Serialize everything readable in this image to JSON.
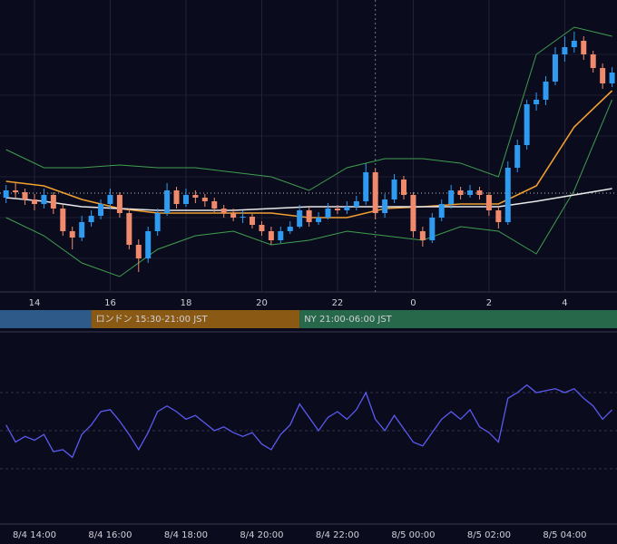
{
  "chart_data": [
    {
      "type": "candlestick",
      "x": [
        13.25,
        13.5,
        13.75,
        14,
        14.25,
        14.5,
        14.75,
        15,
        15.25,
        15.5,
        15.75,
        16,
        16.25,
        16.5,
        16.75,
        17,
        17.25,
        17.5,
        17.75,
        18,
        18.25,
        18.5,
        18.75,
        19,
        19.25,
        19.5,
        19.75,
        20,
        20.25,
        20.5,
        20.75,
        21,
        21.25,
        21.5,
        21.75,
        22,
        22.25,
        22.5,
        22.75,
        23,
        23.25,
        23.5,
        23.75,
        24,
        24.25,
        24.5,
        24.75,
        25,
        25.25,
        25.5,
        25.75,
        26,
        26.25,
        26.5,
        26.75,
        27,
        27.25,
        27.5,
        27.75,
        28,
        28.25,
        28.5,
        28.75,
        29,
        29.25
      ],
      "ohlc": [
        [
          112,
          126,
          106,
          120
        ],
        [
          120,
          128,
          112,
          118
        ],
        [
          118,
          122,
          104,
          110
        ],
        [
          110,
          116,
          98,
          105
        ],
        [
          105,
          122,
          100,
          115
        ],
        [
          115,
          118,
          94,
          100
        ],
        [
          100,
          104,
          70,
          75
        ],
        [
          75,
          80,
          55,
          68
        ],
        [
          68,
          92,
          64,
          85
        ],
        [
          85,
          98,
          80,
          92
        ],
        [
          92,
          110,
          88,
          105
        ],
        [
          105,
          122,
          100,
          115
        ],
        [
          115,
          118,
          90,
          95
        ],
        [
          95,
          100,
          55,
          60
        ],
        [
          60,
          66,
          30,
          45
        ],
        [
          45,
          80,
          40,
          75
        ],
        [
          75,
          100,
          70,
          95
        ],
        [
          95,
          128,
          92,
          120
        ],
        [
          120,
          124,
          100,
          105
        ],
        [
          105,
          122,
          102,
          115
        ],
        [
          115,
          120,
          106,
          112
        ],
        [
          112,
          116,
          102,
          108
        ],
        [
          108,
          112,
          96,
          100
        ],
        [
          100,
          104,
          90,
          95
        ],
        [
          95,
          100,
          86,
          90
        ],
        [
          90,
          98,
          84,
          91
        ],
        [
          91,
          94,
          78,
          82
        ],
        [
          82,
          86,
          70,
          75
        ],
        [
          75,
          80,
          60,
          65
        ],
        [
          65,
          80,
          62,
          75
        ],
        [
          75,
          86,
          72,
          80
        ],
        [
          80,
          104,
          78,
          98
        ],
        [
          98,
          102,
          80,
          85
        ],
        [
          85,
          96,
          82,
          90
        ],
        [
          90,
          106,
          88,
          100
        ],
        [
          100,
          104,
          94,
          98
        ],
        [
          98,
          108,
          94,
          102
        ],
        [
          102,
          114,
          98,
          108
        ],
        [
          108,
          150,
          104,
          140
        ],
        [
          140,
          144,
          88,
          95
        ],
        [
          95,
          116,
          90,
          110
        ],
        [
          110,
          138,
          106,
          132
        ],
        [
          132,
          136,
          110,
          115
        ],
        [
          115,
          118,
          68,
          75
        ],
        [
          75,
          80,
          58,
          65
        ],
        [
          65,
          95,
          62,
          90
        ],
        [
          90,
          110,
          86,
          105
        ],
        [
          105,
          126,
          100,
          120
        ],
        [
          120,
          124,
          110,
          115
        ],
        [
          115,
          126,
          112,
          120
        ],
        [
          120,
          124,
          110,
          115
        ],
        [
          115,
          118,
          92,
          98
        ],
        [
          98,
          102,
          78,
          85
        ],
        [
          85,
          152,
          82,
          145
        ],
        [
          145,
          176,
          140,
          170
        ],
        [
          170,
          220,
          165,
          215
        ],
        [
          215,
          228,
          208,
          220
        ],
        [
          220,
          246,
          214,
          240
        ],
        [
          240,
          278,
          236,
          270
        ],
        [
          270,
          290,
          262,
          278
        ],
        [
          278,
          295,
          272,
          285
        ],
        [
          285,
          290,
          264,
          270
        ],
        [
          270,
          274,
          250,
          255
        ],
        [
          255,
          260,
          232,
          238
        ],
        [
          238,
          256,
          234,
          250
        ]
      ],
      "up_color": "#2f9bf0",
      "down_color": "#f08a6c",
      "xlim": [
        13.09,
        29.38
      ],
      "ylim": [
        8,
        330
      ],
      "xticks": [
        14,
        16,
        18,
        20,
        22,
        {
          "value": 24,
          "label": "0"
        },
        {
          "value": 26,
          "label": "2"
        },
        {
          "value": 28,
          "label": "4"
        }
      ],
      "ygrid": [
        45,
        90,
        135,
        180,
        225,
        270
      ],
      "price_line": 117,
      "divider_x": 23,
      "overlay_x": [
        13.25,
        14.25,
        15.25,
        16.25,
        17.25,
        18.25,
        19.25,
        20.25,
        21.25,
        22.25,
        23.25,
        24.25,
        25.25,
        26.25,
        27.25,
        28.25,
        29.25
      ],
      "overlays": [
        {
          "color": "#3f9f4f",
          "values": [
            165,
            145,
            145,
            148,
            145,
            145,
            140,
            135,
            120,
            145,
            155,
            155,
            150,
            135,
            270,
            300,
            290
          ]
        },
        {
          "color": "#3f9f4f",
          "values": [
            90,
            70,
            40,
            25,
            55,
            70,
            75,
            60,
            65,
            75,
            70,
            65,
            80,
            75,
            50,
            120,
            220
          ]
        },
        {
          "color": "#f0a030",
          "values": [
            130,
            125,
            110,
            100,
            95,
            95,
            95,
            95,
            90,
            90,
            100,
            102,
            105,
            105,
            125,
            190,
            230
          ]
        },
        {
          "color": "#e8e8e8",
          "values": [
            112,
            108,
            102,
            100,
            98,
            98,
            98,
            100,
            102,
            102,
            102,
            102,
            102,
            102,
            108,
            115,
            122
          ]
        }
      ],
      "sessions": [
        {
          "label": null,
          "start": 13,
          "end": 15.5,
          "color": "#2e5a8a"
        },
        {
          "label": "ロンドン 15:30-21:00 JST",
          "start": 15.5,
          "end": 21,
          "color": "#8a5a14"
        },
        {
          "label": "NY 21:00-06:00 JST",
          "start": 21,
          "end": 30,
          "color": "#27684a"
        }
      ]
    },
    {
      "type": "line",
      "x": [
        13.25,
        13.5,
        13.75,
        14,
        14.25,
        14.5,
        14.75,
        15,
        15.25,
        15.5,
        15.75,
        16,
        16.25,
        16.5,
        16.75,
        17,
        17.25,
        17.5,
        17.75,
        18,
        18.25,
        18.5,
        18.75,
        19,
        19.25,
        19.5,
        19.75,
        20,
        20.25,
        20.5,
        20.75,
        21,
        21.25,
        21.5,
        21.75,
        22,
        22.25,
        22.5,
        22.75,
        23,
        23.25,
        23.5,
        23.75,
        24,
        24.25,
        24.5,
        24.75,
        25,
        25.25,
        25.5,
        25.75,
        26,
        26.25,
        26.5,
        26.75,
        27,
        27.25,
        27.5,
        27.75,
        28,
        28.25,
        28.5,
        28.75,
        29,
        29.25
      ],
      "values": [
        53,
        44,
        47,
        45,
        48,
        39,
        40,
        36,
        48,
        53,
        60,
        61,
        55,
        48,
        40,
        49,
        60,
        63,
        60,
        56,
        58,
        54,
        50,
        52,
        49,
        47,
        49,
        43,
        40,
        48,
        53,
        64,
        57,
        50,
        57,
        60,
        56,
        61,
        70,
        56,
        50,
        58,
        51,
        44,
        42,
        49,
        56,
        60,
        56,
        61,
        52,
        49,
        44,
        67,
        70,
        74,
        70,
        71,
        72,
        70,
        72,
        67,
        63,
        56,
        61
      ],
      "color": "#5a5af0",
      "xlim": [
        13.09,
        29.38
      ],
      "ylim": [
        0,
        100
      ],
      "ygrid": [
        30,
        50,
        70
      ],
      "xticks": [
        {
          "value": 14,
          "label": "8/4 14:00"
        },
        {
          "value": 16,
          "label": "8/4 16:00"
        },
        {
          "value": 18,
          "label": "8/4 18:00"
        },
        {
          "value": 20,
          "label": "8/4 20:00"
        },
        {
          "value": 22,
          "label": "8/4 22:00"
        },
        {
          "value": 24,
          "label": "8/5 00:00"
        },
        {
          "value": 26,
          "label": "8/5 02:00"
        },
        {
          "value": 28,
          "label": "8/5 04:00"
        }
      ]
    }
  ]
}
